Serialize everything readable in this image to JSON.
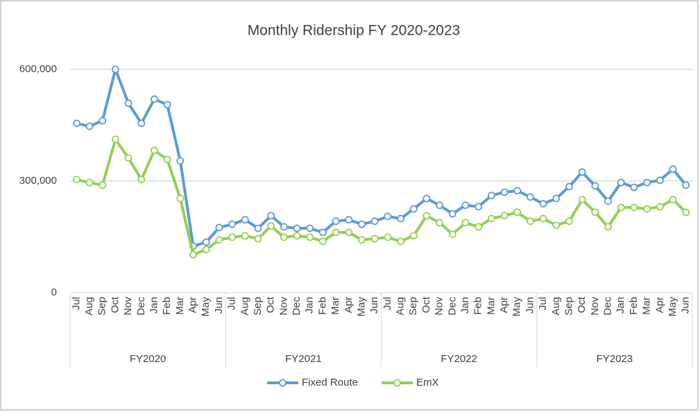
{
  "chart_data": {
    "type": "line",
    "title": "Monthly Ridership FY 2020-2023",
    "categories": [
      "Jul",
      "Aug",
      "Sep",
      "Oct",
      "Nov",
      "Dec",
      "Jan",
      "Feb",
      "Mar",
      "Apr",
      "May",
      "Jun",
      "Jul",
      "Aug",
      "Sep",
      "Oct",
      "Nov",
      "Dec",
      "Jan",
      "Feb",
      "Mar",
      "Apr",
      "May",
      "Jun",
      "Jul",
      "Aug",
      "Sep",
      "Oct",
      "Nov",
      "Dec",
      "Jan",
      "Feb",
      "Mar",
      "Apr",
      "May",
      "Jun",
      "Jul",
      "Aug",
      "Sep",
      "Oct",
      "Nov",
      "Dec",
      "Jan",
      "Feb",
      "Mar",
      "Apr",
      "May",
      "Jun"
    ],
    "groups": [
      "FY2020",
      "FY2021",
      "FY2022",
      "FY2023"
    ],
    "series": [
      {
        "name": "Fixed Route",
        "color": "#5b9bd5",
        "values": [
          455000,
          447000,
          462000,
          600000,
          509000,
          455000,
          520000,
          505000,
          354000,
          125000,
          136000,
          175000,
          184000,
          196000,
          173000,
          207000,
          177000,
          173000,
          173000,
          162000,
          192000,
          196000,
          184000,
          192000,
          205000,
          199000,
          225000,
          253000,
          235000,
          212000,
          235000,
          231000,
          261000,
          270000,
          274000,
          257000,
          239000,
          253000,
          285000,
          324000,
          287000,
          246000,
          296000,
          283000,
          296000,
          302000,
          332000,
          289000
        ]
      },
      {
        "name": "EmX",
        "color": "#92d050",
        "values": [
          304000,
          296000,
          289000,
          412000,
          362000,
          304000,
          382000,
          358000,
          253000,
          102000,
          116000,
          142000,
          149000,
          153000,
          145000,
          179000,
          149000,
          153000,
          149000,
          138000,
          162000,
          162000,
          142000,
          145000,
          149000,
          138000,
          153000,
          207000,
          188000,
          157000,
          188000,
          177000,
          199000,
          207000,
          216000,
          192000,
          199000,
          181000,
          192000,
          250000,
          216000,
          177000,
          229000,
          229000,
          225000,
          231000,
          250000,
          216000
        ]
      }
    ],
    "ylim": [
      0,
      600000
    ],
    "yticks": [
      0,
      {
        "value": 300000,
        "label": "300,000"
      },
      {
        "value": 600000,
        "label": "600,000"
      }
    ],
    "grid": true,
    "legend": "bottom"
  }
}
